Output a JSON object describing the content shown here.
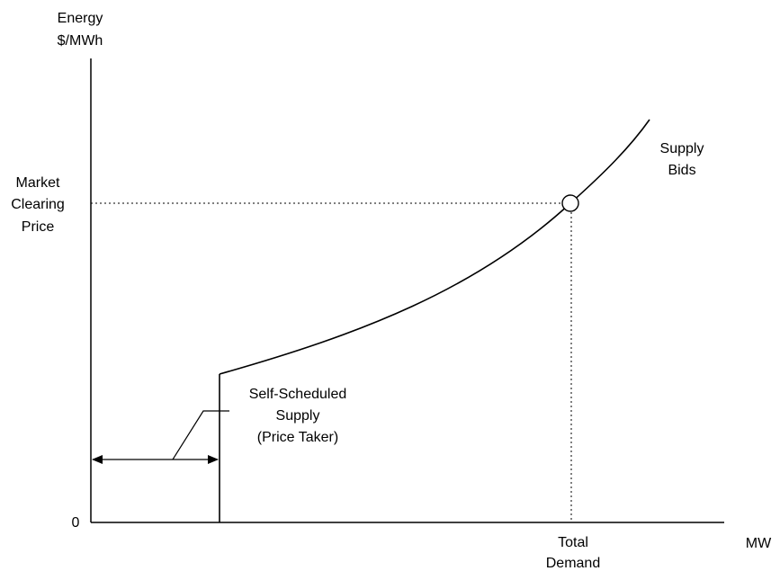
{
  "y_axis": {
    "title_line1": "Energy",
    "title_line2": "$/MWh",
    "zero_label": "0",
    "price_label": [
      "Market",
      "Clearing",
      "Price"
    ]
  },
  "x_axis": {
    "unit_label": "MW",
    "demand_label": [
      "Total",
      "Demand"
    ]
  },
  "curve": {
    "name_line1": "Supply",
    "name_line2": "Bids"
  },
  "self_scheduled": {
    "line1": "Self-Scheduled",
    "line2": "Supply",
    "line3": "(Price Taker)"
  },
  "colors": {
    "ink": "#000000",
    "background": "#ffffff"
  }
}
